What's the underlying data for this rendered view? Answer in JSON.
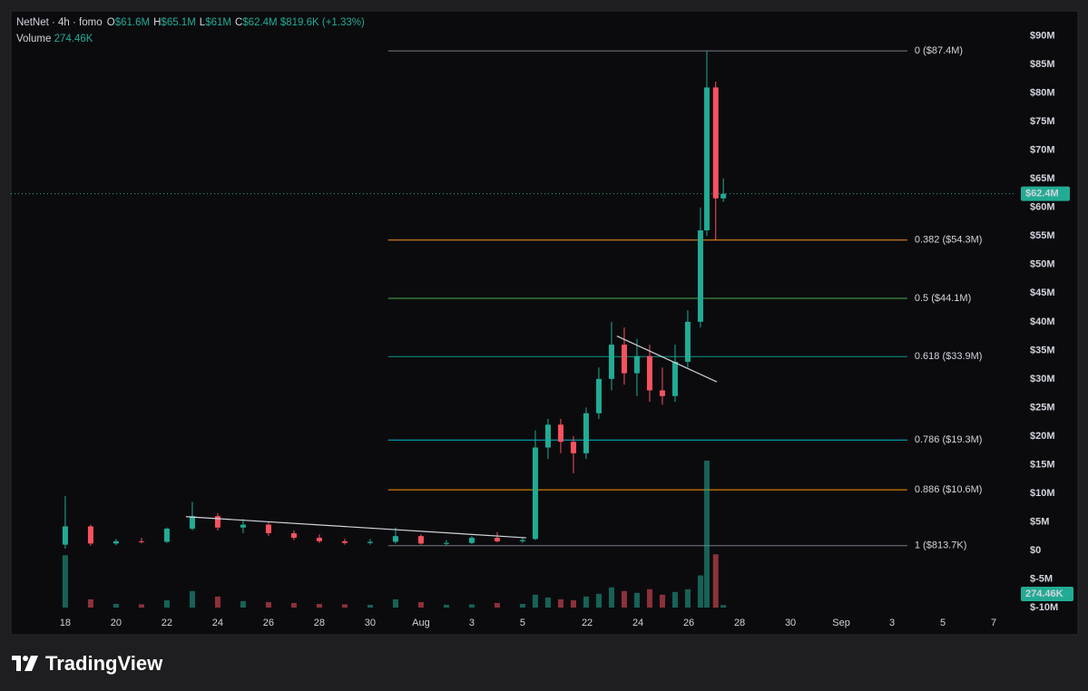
{
  "header": {
    "symbol": "NetNet · 4h · fomo",
    "ohlc": [
      {
        "label": "O",
        "value": "$61.6M"
      },
      {
        "label": "H",
        "value": "$65.1M"
      },
      {
        "label": "L",
        "value": "$61M"
      },
      {
        "label": "C",
        "value": "$62.4M"
      }
    ],
    "change": "$819.6K (+1.33%)",
    "volume": {
      "label": "Volume",
      "value": "274.46K"
    }
  },
  "footer": {
    "brand": "TradingView"
  },
  "chart_data": {
    "type": "candlestick",
    "x": [
      0,
      1,
      2,
      3,
      4,
      5,
      6,
      7,
      8,
      9,
      10,
      11,
      12,
      13,
      14,
      15,
      16,
      17,
      18,
      18.5,
      19,
      19.5,
      20,
      20.5,
      21,
      21.5,
      22,
      22.5,
      23,
      23.5,
      24,
      24.5,
      25,
      25.25,
      25.6,
      25.9
    ],
    "open": [
      1,
      4.2,
      1.2,
      1.6,
      1.5,
      3.8,
      6,
      4,
      4.5,
      3,
      2.2,
      1.6,
      1.3,
      1.5,
      2.5,
      1.2,
      1.3,
      2.2,
      1.6,
      2,
      18,
      22,
      19,
      17,
      24,
      30,
      36,
      31,
      34,
      28,
      27,
      33,
      40,
      56,
      81,
      61.6
    ],
    "high": [
      9.5,
      4.5,
      2,
      2.2,
      4,
      8.5,
      6.5,
      5.5,
      5,
      3.5,
      2.8,
      2,
      2,
      4,
      2.8,
      1.8,
      2.5,
      3.2,
      2.2,
      21,
      23,
      23,
      20,
      25,
      32,
      40,
      39,
      37,
      36,
      32,
      36,
      42,
      60,
      87.4,
      82,
      65.1
    ],
    "low": [
      0.3,
      0.8,
      0.9,
      1.2,
      1.3,
      3.5,
      3.5,
      3,
      2.5,
      1.8,
      1.3,
      1,
      1,
      1.2,
      1,
      0.9,
      1.1,
      1.4,
      1.3,
      1.8,
      16,
      17,
      13.5,
      16,
      23,
      28,
      29,
      27,
      26,
      25.5,
      26,
      32,
      39,
      55,
      54.3,
      61
    ],
    "close": [
      4.2,
      1.2,
      1.6,
      1.5,
      3.8,
      6,
      4,
      4.5,
      3,
      2.2,
      1.6,
      1.3,
      1.5,
      2.5,
      1.2,
      1.3,
      2.2,
      1.6,
      1.8,
      18,
      22,
      19,
      17,
      24,
      30,
      36,
      31,
      34,
      28,
      27,
      33,
      40,
      56,
      81,
      61.6,
      62.4
    ],
    "volume": [
      5700,
      900,
      400,
      350,
      800,
      1800,
      1200,
      700,
      600,
      500,
      400,
      350,
      300,
      900,
      600,
      300,
      350,
      500,
      400,
      1400,
      1100,
      900,
      800,
      1200,
      1500,
      2200,
      1800,
      1600,
      2000,
      1400,
      1700,
      2000,
      3500,
      16000,
      5800,
      274.46
    ],
    "up_color": "#22ab94",
    "down_color": "#f7525f",
    "xlim": [
      -2.14,
      37.43
    ],
    "ylim": [
      -10.8,
      94.4
    ],
    "xticks": [
      {
        "value": 0,
        "label": "18"
      },
      {
        "value": 2,
        "label": "20"
      },
      {
        "value": 4,
        "label": "22"
      },
      {
        "value": 6,
        "label": "24"
      },
      {
        "value": 8,
        "label": "26"
      },
      {
        "value": 10,
        "label": "28"
      },
      {
        "value": 12,
        "label": "30"
      },
      {
        "value": 14,
        "label": "Aug"
      },
      {
        "value": 16,
        "label": "3"
      },
      {
        "value": 18,
        "label": "5"
      },
      {
        "value": 20.54,
        "label": "22"
      },
      {
        "value": 22.54,
        "label": "24"
      },
      {
        "value": 24.54,
        "label": "26"
      },
      {
        "value": 26.54,
        "label": "28"
      },
      {
        "value": 28.54,
        "label": "30"
      },
      {
        "value": 30.54,
        "label": "Sep"
      },
      {
        "value": 32.54,
        "label": "3"
      },
      {
        "value": 34.54,
        "label": "5"
      },
      {
        "value": 36.54,
        "label": "7"
      }
    ],
    "yticks": [
      {
        "value": -10,
        "label": "$-10M"
      },
      {
        "value": -5,
        "label": "$-5M"
      },
      {
        "value": 0,
        "label": "$0"
      },
      {
        "value": 5,
        "label": "$5M"
      },
      {
        "value": 10,
        "label": "$10M"
      },
      {
        "value": 15,
        "label": "$15M"
      },
      {
        "value": 20,
        "label": "$20M"
      },
      {
        "value": 25,
        "label": "$25M"
      },
      {
        "value": 30,
        "label": "$30M"
      },
      {
        "value": 35,
        "label": "$35M"
      },
      {
        "value": 40,
        "label": "$40M"
      },
      {
        "value": 45,
        "label": "$45M"
      },
      {
        "value": 50,
        "label": "$50M"
      },
      {
        "value": 55,
        "label": "$55M"
      },
      {
        "value": 60,
        "label": "$60M"
      },
      {
        "value": 65,
        "label": "$65M"
      },
      {
        "value": 70,
        "label": "$70M"
      },
      {
        "value": 75,
        "label": "$75M"
      },
      {
        "value": 80,
        "label": "$80M"
      },
      {
        "value": 85,
        "label": "$85M"
      },
      {
        "value": 90,
        "label": "$90M"
      }
    ],
    "last_price": {
      "value": 62.4,
      "label": "$62.4M",
      "color": "#22ab94"
    },
    "fib_x": [
      12.71,
      33.14
    ],
    "fib_levels": [
      {
        "value": 87.4,
        "label": "0 ($87.4M)",
        "color": "#787b86"
      },
      {
        "value": 54.3,
        "label": "0.382 ($54.3M)",
        "color": "#f7931a"
      },
      {
        "value": 44.1,
        "label": "0.5 ($44.1M)",
        "color": "#4caf50"
      },
      {
        "value": 33.9,
        "label": "0.618 ($33.9M)",
        "color": "#089981"
      },
      {
        "value": 19.3,
        "label": "0.786 ($19.3M)",
        "color": "#00bcd4"
      },
      {
        "value": 10.6,
        "label": "0.886 ($10.6M)",
        "color": "#ff9800"
      },
      {
        "value": 0.8137,
        "label": "1 ($813.7K)",
        "color": "#787b86"
      }
    ],
    "trendlines": [
      [
        [
          4.75,
          5.9
        ],
        [
          18.14,
          2.2
        ]
      ],
      [
        [
          21.71,
          37.5
        ],
        [
          25.64,
          29.5
        ]
      ]
    ],
    "trendline_color": "#d1d4dc"
  }
}
